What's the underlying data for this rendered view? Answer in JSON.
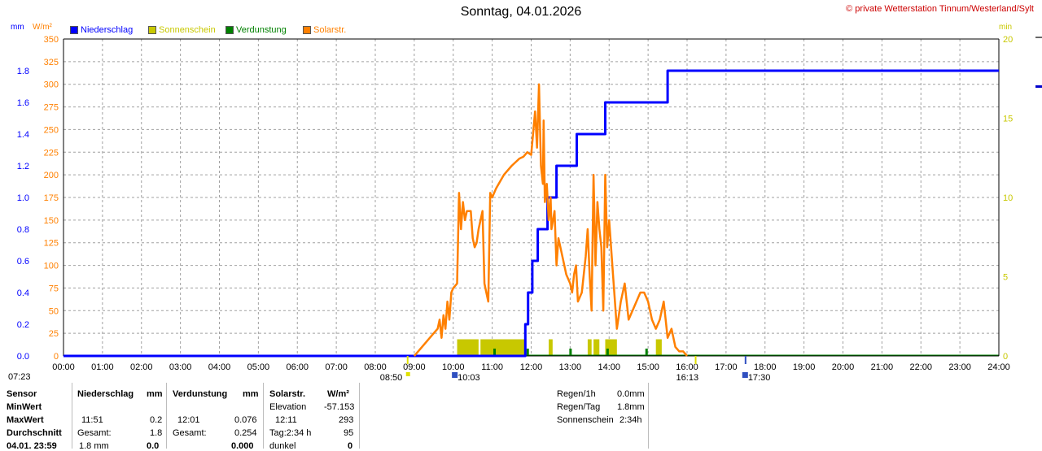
{
  "header": {
    "title": "Sonntag, 04.01.2026",
    "copyright": "© private Wetterstation Tinnum/Westerland/Sylt"
  },
  "units": {
    "left_mm": "mm",
    "left_wm2": "W/m²",
    "right_min": "min"
  },
  "legend": [
    {
      "label": "Niederschlag",
      "color": "#0000ff",
      "text_color": "#0000ff"
    },
    {
      "label": "Sonnenschein",
      "color": "#c8c800",
      "text_color": "#c8c800"
    },
    {
      "label": "Verdunstung",
      "color": "#008000",
      "text_color": "#008000"
    },
    {
      "label": "Solarstr.",
      "color": "#ff8000",
      "text_color": "#ff8000"
    }
  ],
  "chart_data": {
    "type": "line",
    "x_ticks": [
      "00:00",
      "01:00",
      "02:00",
      "03:00",
      "04:00",
      "05:00",
      "06:00",
      "07:00",
      "08:00",
      "09:00",
      "10:00",
      "11:00",
      "12:00",
      "13:00",
      "14:00",
      "15:00",
      "16:00",
      "17:00",
      "18:00",
      "19:00",
      "20:00",
      "21:00",
      "22:00",
      "23:00",
      "24:00"
    ],
    "y_left_mm_ticks": [
      "0.0",
      "0.2",
      "0.4",
      "0.6",
      "0.8",
      "1.0",
      "1.2",
      "1.4",
      "1.6",
      "1.8"
    ],
    "y_left_wm2_ticks": [
      "0",
      "25",
      "50",
      "75",
      "100",
      "125",
      "150",
      "175",
      "200",
      "225",
      "250",
      "275",
      "300",
      "325",
      "350"
    ],
    "y_right_min_ticks": [
      "0",
      "5",
      "10",
      "15",
      "20"
    ],
    "ylim_mm": [
      0,
      2.0
    ],
    "ylim_wm2": [
      0,
      350
    ],
    "ylim_min": [
      0,
      20
    ],
    "grid": true,
    "series": [
      {
        "name": "Niederschlag",
        "unit": "mm",
        "color": "#0000ff",
        "x": [
          0,
          11.85,
          11.85,
          11.92,
          11.92,
          12.03,
          12.03,
          12.17,
          12.17,
          12.42,
          12.42,
          12.65,
          12.65,
          13.17,
          13.17,
          13.9,
          13.9,
          15.5,
          15.5,
          24
        ],
        "y": [
          0,
          0,
          0.2,
          0.2,
          0.4,
          0.4,
          0.6,
          0.6,
          0.8,
          0.8,
          1.0,
          1.0,
          1.2,
          1.2,
          1.4,
          1.4,
          1.6,
          1.6,
          1.8,
          1.8
        ]
      },
      {
        "name": "Solarstr.",
        "unit": "W/m²",
        "color": "#ff8000",
        "x": [
          9.0,
          9.1,
          9.3,
          9.5,
          9.6,
          9.65,
          9.7,
          9.75,
          9.8,
          9.85,
          9.9,
          9.95,
          10.0,
          10.1,
          10.15,
          10.2,
          10.25,
          10.3,
          10.35,
          10.45,
          10.5,
          10.55,
          10.6,
          10.65,
          10.7,
          10.75,
          10.8,
          10.85,
          10.9,
          10.95,
          11.0,
          11.1,
          11.3,
          11.5,
          11.7,
          11.8,
          11.9,
          12.0,
          12.1,
          12.15,
          12.2,
          12.25,
          12.3,
          12.32,
          12.35,
          12.4,
          12.45,
          12.5,
          12.52,
          12.6,
          12.65,
          12.7,
          12.8,
          12.9,
          13.0,
          13.05,
          13.1,
          13.15,
          13.2,
          13.3,
          13.4,
          13.45,
          13.5,
          13.55,
          13.6,
          13.65,
          13.7,
          13.75,
          13.8,
          13.85,
          13.9,
          13.95,
          14.0,
          14.1,
          14.2,
          14.3,
          14.4,
          14.5,
          14.6,
          14.7,
          14.8,
          14.9,
          15.0,
          15.1,
          15.2,
          15.3,
          15.4,
          15.5,
          15.6,
          15.7,
          15.8,
          15.9,
          16.0
        ],
        "y": [
          0,
          5,
          15,
          25,
          30,
          40,
          20,
          45,
          30,
          60,
          40,
          70,
          75,
          80,
          180,
          140,
          170,
          150,
          160,
          160,
          130,
          120,
          125,
          140,
          150,
          160,
          80,
          70,
          60,
          180,
          175,
          185,
          200,
          210,
          218,
          220,
          225,
          222,
          270,
          230,
          300,
          210,
          190,
          260,
          170,
          190,
          150,
          175,
          140,
          160,
          100,
          130,
          110,
          90,
          80,
          70,
          90,
          100,
          60,
          70,
          110,
          140,
          90,
          50,
          200,
          100,
          170,
          140,
          120,
          50,
          200,
          120,
          150,
          90,
          30,
          60,
          80,
          40,
          50,
          60,
          70,
          70,
          60,
          40,
          30,
          40,
          60,
          20,
          30,
          10,
          5,
          5,
          0
        ]
      }
    ],
    "sunshine_blocks": [
      [
        10.1,
        10.65
      ],
      [
        10.7,
        11.85
      ],
      [
        12.45,
        12.55
      ],
      [
        13.45,
        13.55
      ],
      [
        13.6,
        13.75
      ],
      [
        13.9,
        14.2
      ],
      [
        15.2,
        15.35
      ]
    ],
    "evaporation_ticks": [
      11.05,
      11.9,
      13.0,
      13.95,
      14.95
    ]
  },
  "sun_markers": {
    "sunrise": "08:50",
    "sunrise_top": "10:03",
    "sunset": "16:13",
    "sunset_top": "17:30",
    "left_time": "07:23"
  },
  "stats": {
    "col1": [
      "Sensor",
      "MinWert",
      "MaxWert",
      "Durchschnitt",
      "04.01. 23:59"
    ],
    "niederschlag": {
      "header": "Niederschlag",
      "unit": "mm",
      "max_time": "11:51",
      "max_val": "0.2",
      "gesamt_label": "Gesamt:",
      "gesamt_val": "1.8",
      "last_val": "1.8 mm",
      "last_mm": "0.0"
    },
    "verdunstung": {
      "header": "Verdunstung",
      "unit": "mm",
      "max_time": "12:01",
      "max_val": "0.076",
      "gesamt_label": "Gesamt:",
      "gesamt_val": "0.254",
      "last_val": "0.000"
    },
    "solar": {
      "header": "Solarstr.",
      "unit": "W/m²",
      "min_label": "Elevation",
      "min_val": "-57.153",
      "max_time": "12:11",
      "max_val": "293",
      "tag_label": "Tag:2:34 h",
      "tag_val": "95",
      "dunkel_label": "dunkel",
      "dunkel_val": "0"
    },
    "summary": [
      {
        "label": "Regen/1h",
        "value": "0.0mm"
      },
      {
        "label": "Regen/Tag",
        "value": "1.8mm"
      },
      {
        "label": "Sonnenschein",
        "value": "2:34h"
      }
    ]
  }
}
